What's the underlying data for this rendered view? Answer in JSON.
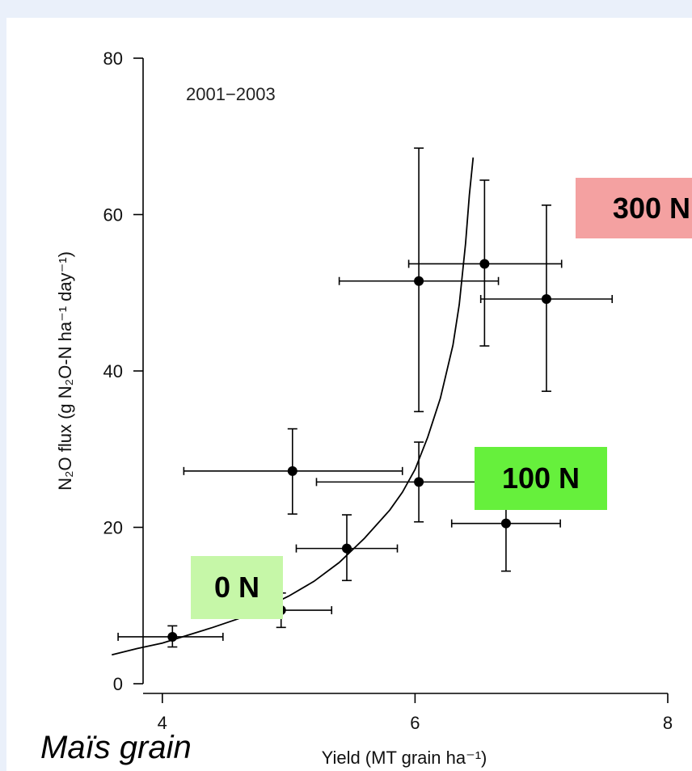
{
  "colors": {
    "background": "#eaf0fa",
    "panel": "#ffffff",
    "tag_300": "#f4a1a1",
    "tag_100": "#66f03c",
    "tag_0": "#c6f7a8"
  },
  "caption": "Maïs grain",
  "tags": {
    "n300": "300 N",
    "n100": "100 N",
    "n0": "0 N"
  },
  "chart_data": {
    "type": "scatter",
    "annotation": "2001−2003",
    "xlabel": "Yield (MT grain ha⁻¹)",
    "ylabel": "N₂O flux (g N₂O-N ha⁻¹ day⁻¹)",
    "xlim": [
      3,
      8
    ],
    "ylim": [
      0,
      80
    ],
    "x_ticks": [
      4,
      6,
      8
    ],
    "y_ticks": [
      0,
      20,
      40,
      60,
      80
    ],
    "grid": false,
    "points": [
      {
        "x": 4.08,
        "y": 6.0,
        "xerr": [
          3.65,
          4.48
        ],
        "yerr": [
          4.7,
          7.4
        ]
      },
      {
        "x": 4.94,
        "y": 9.4,
        "xerr": [
          4.53,
          5.34
        ],
        "yerr": [
          7.2,
          11.6
        ]
      },
      {
        "x": 5.03,
        "y": 27.2,
        "xerr": [
          4.17,
          5.9
        ],
        "yerr": [
          21.7,
          32.6
        ]
      },
      {
        "x": 5.46,
        "y": 17.3,
        "xerr": [
          5.06,
          5.86
        ],
        "yerr": [
          13.2,
          21.6
        ]
      },
      {
        "x": 6.03,
        "y": 25.8,
        "xerr": [
          5.22,
          6.82
        ],
        "yerr": [
          20.7,
          30.9
        ]
      },
      {
        "x": 6.72,
        "y": 20.5,
        "xerr": [
          6.29,
          7.15
        ],
        "yerr": [
          14.4,
          26.1
        ]
      },
      {
        "x": 6.03,
        "y": 51.5,
        "xerr": [
          5.4,
          6.66
        ],
        "yerr": [
          34.8,
          68.5
        ]
      },
      {
        "x": 6.55,
        "y": 53.7,
        "xerr": [
          5.95,
          7.16
        ],
        "yerr": [
          43.2,
          64.4
        ]
      },
      {
        "x": 7.04,
        "y": 49.2,
        "xerr": [
          6.52,
          7.56
        ],
        "yerr": [
          37.4,
          61.2
        ]
      }
    ],
    "fit_curve": [
      [
        3.6,
        3.7
      ],
      [
        3.8,
        4.5
      ],
      [
        4.0,
        5.2
      ],
      [
        4.2,
        6.2
      ],
      [
        4.4,
        7.2
      ],
      [
        4.6,
        8.3
      ],
      [
        4.8,
        9.6
      ],
      [
        5.0,
        11.2
      ],
      [
        5.2,
        13.1
      ],
      [
        5.4,
        15.5
      ],
      [
        5.6,
        18.6
      ],
      [
        5.8,
        22.2
      ],
      [
        5.9,
        24.5
      ],
      [
        6.0,
        27.4
      ],
      [
        6.1,
        31.5
      ],
      [
        6.2,
        36.5
      ],
      [
        6.3,
        43.3
      ],
      [
        6.35,
        48.5
      ],
      [
        6.4,
        56.3
      ],
      [
        6.43,
        62.5
      ],
      [
        6.46,
        67.3
      ]
    ]
  }
}
